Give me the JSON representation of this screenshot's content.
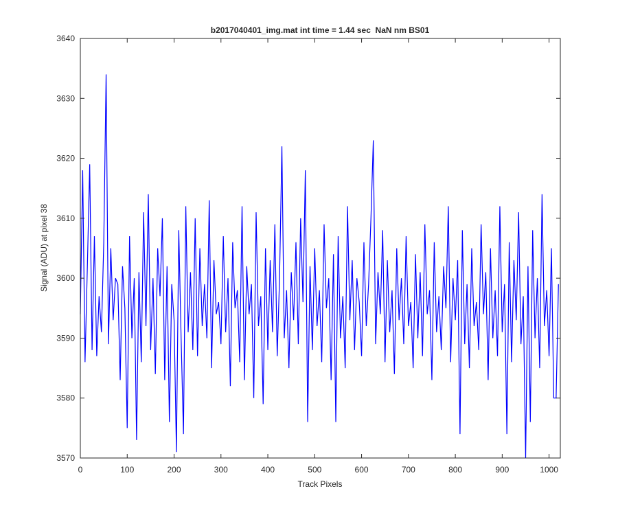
{
  "chart_data": {
    "type": "line",
    "title": "b2017040401_img.mat int time = 1.44 sec  NaN nm BS01",
    "xlabel": "Track Pixels",
    "ylabel": "Signal (ADU) at pixel 38",
    "color": "#0000ff",
    "xlim": [
      0,
      1024
    ],
    "ylim": [
      3570,
      3640
    ],
    "xticks": [
      0,
      100,
      200,
      300,
      400,
      500,
      600,
      700,
      800,
      900,
      1000
    ],
    "yticks": [
      3570,
      3580,
      3590,
      3600,
      3610,
      3620,
      3630,
      3640
    ],
    "x": [
      0,
      5,
      10,
      15,
      20,
      25,
      30,
      35,
      40,
      45,
      50,
      55,
      60,
      65,
      70,
      75,
      80,
      85,
      90,
      95,
      100,
      105,
      110,
      115,
      120,
      125,
      130,
      135,
      140,
      145,
      150,
      155,
      160,
      165,
      170,
      175,
      180,
      185,
      190,
      195,
      200,
      205,
      210,
      215,
      220,
      225,
      230,
      235,
      240,
      245,
      250,
      255,
      260,
      265,
      270,
      275,
      280,
      285,
      290,
      295,
      300,
      305,
      310,
      315,
      320,
      325,
      330,
      335,
      340,
      345,
      350,
      355,
      360,
      365,
      370,
      375,
      380,
      385,
      390,
      395,
      400,
      405,
      410,
      415,
      420,
      425,
      430,
      435,
      440,
      445,
      450,
      455,
      460,
      465,
      470,
      475,
      480,
      485,
      490,
      495,
      500,
      505,
      510,
      515,
      520,
      525,
      530,
      535,
      540,
      545,
      550,
      555,
      560,
      565,
      570,
      575,
      580,
      585,
      590,
      595,
      600,
      605,
      610,
      615,
      620,
      625,
      630,
      635,
      640,
      645,
      650,
      655,
      660,
      665,
      670,
      675,
      680,
      685,
      690,
      695,
      700,
      705,
      710,
      715,
      720,
      725,
      730,
      735,
      740,
      745,
      750,
      755,
      760,
      765,
      770,
      775,
      780,
      785,
      790,
      795,
      800,
      805,
      810,
      815,
      820,
      825,
      830,
      835,
      840,
      845,
      850,
      855,
      860,
      865,
      870,
      875,
      880,
      885,
      890,
      895,
      900,
      905,
      910,
      915,
      920,
      925,
      930,
      935,
      940,
      945,
      950,
      955,
      960,
      965,
      970,
      975,
      980,
      985,
      990,
      995,
      1000,
      1005,
      1010,
      1015,
      1020
    ],
    "values": [
      3594,
      3618,
      3586,
      3602,
      3619,
      3588,
      3607,
      3587,
      3597,
      3591,
      3606,
      3634,
      3589,
      3605,
      3593,
      3600,
      3599,
      3583,
      3602,
      3595,
      3575,
      3607,
      3590,
      3600,
      3573,
      3601,
      3586,
      3611,
      3592,
      3614,
      3588,
      3600,
      3584,
      3605,
      3597,
      3610,
      3583,
      3602,
      3576,
      3599,
      3593,
      3571,
      3608,
      3590,
      3574,
      3612,
      3591,
      3601,
      3588,
      3610,
      3587,
      3605,
      3592,
      3599,
      3590,
      3613,
      3585,
      3603,
      3594,
      3596,
      3589,
      3607,
      3591,
      3600,
      3582,
      3606,
      3595,
      3598,
      3586,
      3612,
      3583,
      3602,
      3594,
      3599,
      3580,
      3611,
      3592,
      3597,
      3579,
      3605,
      3588,
      3603,
      3591,
      3609,
      3587,
      3600,
      3622,
      3590,
      3598,
      3585,
      3601,
      3593,
      3606,
      3589,
      3610,
      3596,
      3618,
      3576,
      3602,
      3588,
      3605,
      3592,
      3598,
      3586,
      3609,
      3595,
      3600,
      3583,
      3604,
      3576,
      3607,
      3590,
      3597,
      3585,
      3612,
      3593,
      3603,
      3588,
      3600,
      3596,
      3587,
      3606,
      3592,
      3599,
      3610,
      3623,
      3589,
      3601,
      3594,
      3608,
      3586,
      3603,
      3591,
      3598,
      3584,
      3605,
      3593,
      3600,
      3589,
      3607,
      3592,
      3596,
      3585,
      3604,
      3590,
      3601,
      3587,
      3609,
      3594,
      3598,
      3583,
      3606,
      3591,
      3597,
      3588,
      3602,
      3595,
      3612,
      3586,
      3600,
      3593,
      3603,
      3574,
      3608,
      3589,
      3599,
      3585,
      3605,
      3592,
      3596,
      3588,
      3609,
      3594,
      3601,
      3583,
      3605,
      3590,
      3598,
      3587,
      3612,
      3591,
      3599,
      3574,
      3606,
      3586,
      3603,
      3593,
      3611,
      3589,
      3597,
      3570,
      3602,
      3576,
      3608,
      3590,
      3600,
      3585,
      3614,
      3592,
      3598,
      3587,
      3605,
      3580,
      3580,
      3599
    ]
  }
}
